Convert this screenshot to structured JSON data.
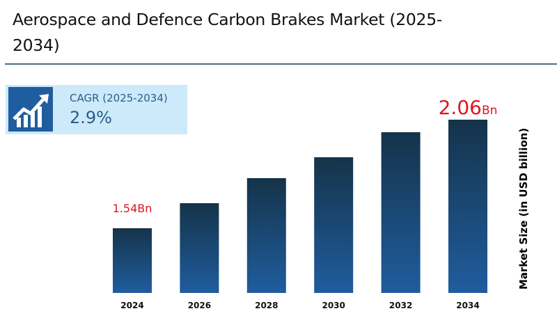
{
  "title": "Aerospace and Defence Carbon Brakes Market (2025-2034)",
  "cagr": {
    "icon": "growth-chart-icon",
    "label": "CAGR (2025-2034)",
    "value": "2.9%"
  },
  "chart_data": {
    "type": "bar",
    "title": "Aerospace and Defence Carbon Brakes Market (2025-2034)",
    "xlabel": "",
    "ylabel": "Market Size (in USD billion)",
    "categories": [
      "2024",
      "2026",
      "2028",
      "2030",
      "2032",
      "2034"
    ],
    "values": [
      1.54,
      1.66,
      1.78,
      1.88,
      2.0,
      2.06
    ],
    "units": "USD billion",
    "annotations": [
      {
        "category": "2024",
        "text": "1.54Bn"
      },
      {
        "category": "2034",
        "value_text": "2.06",
        "unit_text": "Bn"
      }
    ],
    "ylim": [
      1.23,
      2.06
    ],
    "grid": false,
    "legend": "none",
    "colors": {
      "bar_top": "#15334a",
      "bar_bottom": "#1f5d9e",
      "annotation": "#e0141e"
    }
  }
}
